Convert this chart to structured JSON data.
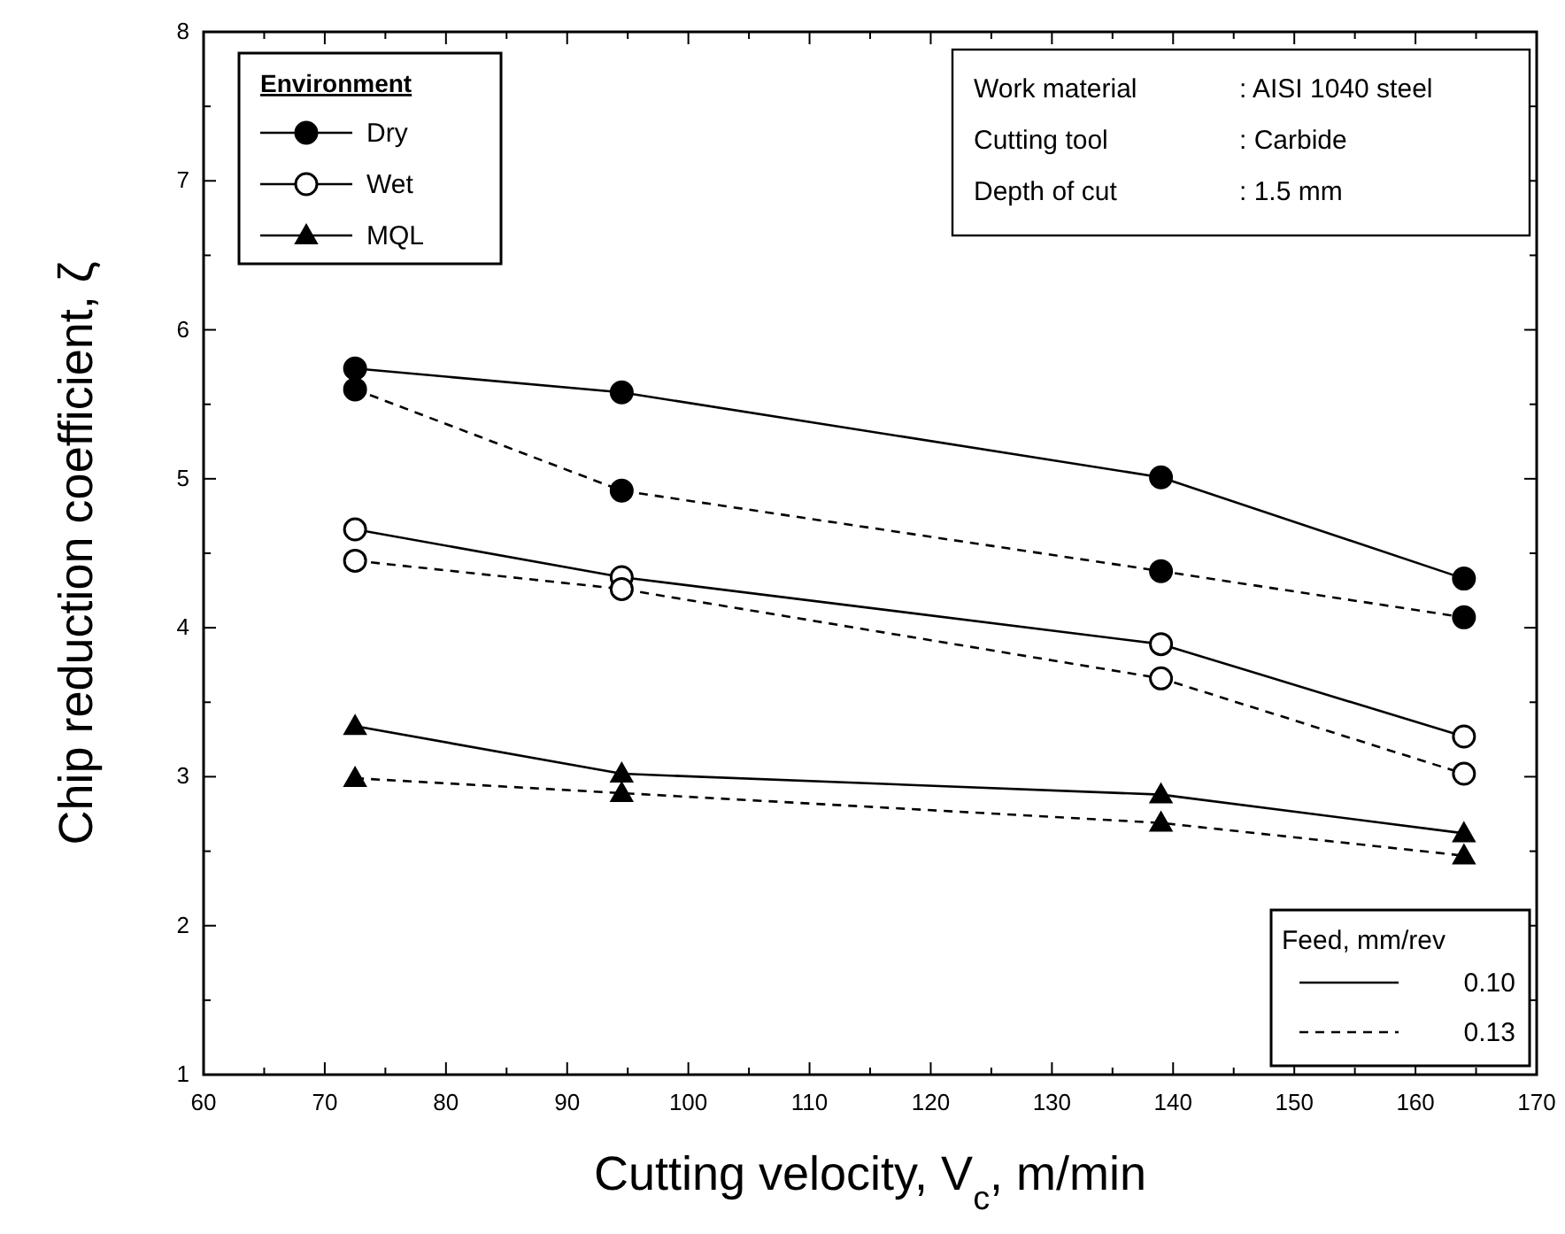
{
  "chart_data": {
    "type": "line",
    "xlabel": "Cutting velocity, V$_{c}$, m/min",
    "ylabel": "Chip reduction coefficient, ζ",
    "legend_title": "Environment",
    "legend": "top left",
    "marker": "circle",
    "xlim": [
      60,
      170
    ],
    "ylim": [
      1,
      8
    ],
    "xticks": [
      60,
      {
        "value": 65,
        "label": null
      },
      70,
      {
        "value": 75,
        "label": null
      },
      80,
      {
        "value": 85,
        "label": null
      },
      90,
      {
        "value": 95,
        "label": null
      },
      100,
      {
        "value": 105,
        "label": null
      },
      110,
      {
        "value": 115,
        "label": null
      },
      120,
      {
        "value": 125,
        "label": null
      },
      130,
      {
        "value": 135,
        "label": null
      },
      140,
      {
        "value": 145,
        "label": null
      },
      150,
      {
        "value": 155,
        "label": null
      },
      160,
      {
        "value": 165,
        "label": null
      },
      170
    ],
    "yticks": [
      1,
      {
        "value": 1.5,
        "label": null
      },
      2,
      {
        "value": 2.5,
        "label": null
      },
      3,
      {
        "value": 3.5,
        "label": null
      },
      4,
      {
        "value": 4.5,
        "label": null
      },
      5,
      {
        "value": 5.5,
        "label": null
      },
      6,
      {
        "value": 6.5,
        "label": null
      },
      7,
      {
        "value": 7.5,
        "label": null
      },
      8
    ],
    "x": [
      72.5,
      94.5,
      139,
      164
    ],
    "series": [
      {
        "name": "Dry",
        "color": "#000000",
        "marker": "circle",
        "line_style": "solid",
        "values": [
          5.74,
          5.58,
          5.01,
          4.33
        ]
      },
      {
        "name": "Wet",
        "color": "#000000",
        "colors": [
          "#ffffff",
          "#ffffff",
          "#ffffff",
          "#ffffff"
        ],
        "marker": "circle",
        "line_style": "solid",
        "values": [
          4.66,
          4.34,
          3.89,
          3.27
        ]
      },
      {
        "name": "MQL",
        "color": "#000000",
        "marker": "triangle",
        "line_style": "solid",
        "values": [
          3.34,
          3.02,
          2.88,
          2.62
        ]
      },
      {
        "color": "#000000",
        "marker": "circle",
        "line_style": "dashed",
        "values": [
          5.6,
          4.92,
          4.38,
          4.07
        ]
      },
      {
        "color": "#000000",
        "colors": [
          "#ffffff",
          "#ffffff",
          "#ffffff",
          "#ffffff"
        ],
        "marker": "circle",
        "line_style": "dashed",
        "values": [
          4.45,
          4.26,
          3.66,
          3.02
        ]
      },
      {
        "color": "#000000",
        "marker": "triangle",
        "line_style": "dashed",
        "values": [
          2.99,
          2.89,
          2.69,
          2.47
        ]
      }
    ],
    "annotations": [
      "Work material : AISI 1040 steel",
      "Cutting tool : Carbide",
      "Depth of cut : 1.5 mm",
      "Feed, mm/rev",
      "0.10",
      "0.13"
    ]
  }
}
